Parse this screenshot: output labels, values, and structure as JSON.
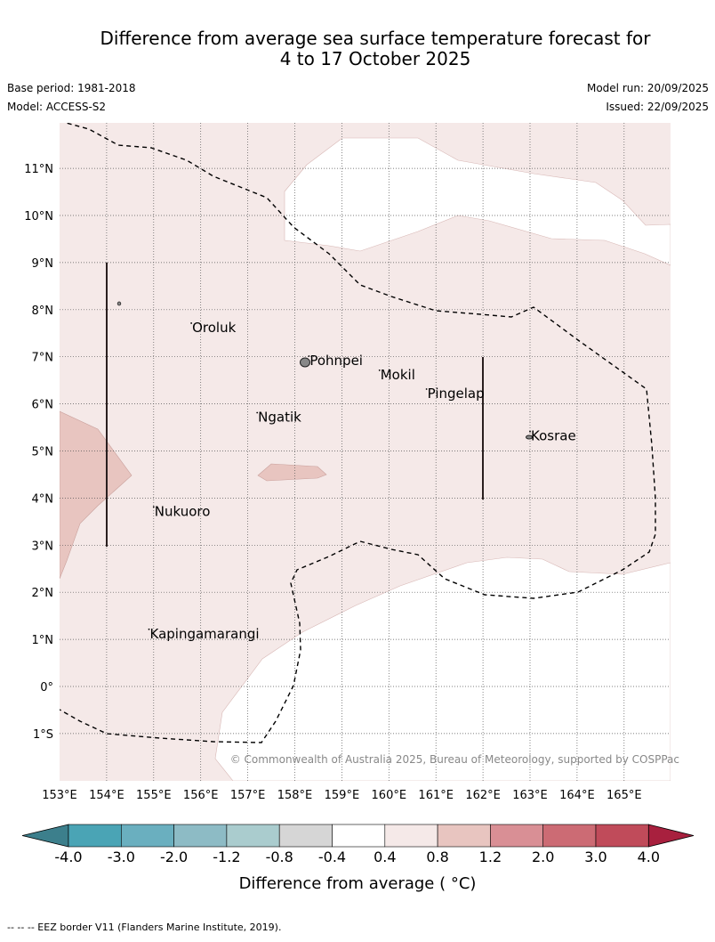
{
  "title": {
    "line1": "Difference from average sea surface temperature forecast for",
    "line2": "4 to 17 October 2025"
  },
  "meta": {
    "base_period": "Base period: 1981-2018",
    "model": "Model: ACCESS-S2",
    "model_run": "Model run: 20/09/2025",
    "issued": "Issued: 22/09/2025"
  },
  "map": {
    "lon_labels": [
      "153°E",
      "154°E",
      "155°E",
      "156°E",
      "157°E",
      "158°E",
      "159°E",
      "160°E",
      "161°E",
      "162°E",
      "163°E",
      "164°E",
      "165°E"
    ],
    "lat_labels": [
      "11°N",
      "10°N",
      "9°N",
      "8°N",
      "7°N",
      "6°N",
      "5°N",
      "4°N",
      "3°N",
      "2°N",
      "1°N",
      "0°",
      "1°S"
    ],
    "places": [
      {
        "name": "Oroluk",
        "lon": 155.8,
        "lat": 7.6
      },
      {
        "name": "Pohnpei",
        "lon": 158.3,
        "lat": 6.9
      },
      {
        "name": "Mokil",
        "lon": 159.8,
        "lat": 6.6
      },
      {
        "name": "Pingelap",
        "lon": 160.8,
        "lat": 6.2
      },
      {
        "name": "Ngatik",
        "lon": 157.2,
        "lat": 5.7
      },
      {
        "name": "Kosrae",
        "lon": 163.0,
        "lat": 5.3
      },
      {
        "name": "Nukuoro",
        "lon": 155.0,
        "lat": 3.7
      },
      {
        "name": "Kapingamarangi",
        "lon": 154.9,
        "lat": 1.1
      }
    ],
    "copyright": "© Commonwealth of Australia 2025, Bureau of Meteorology, supported by COSPPac"
  },
  "colorbar": {
    "ticks": [
      "-4.0",
      "-3.0",
      "-2.0",
      "-1.2",
      "-0.8",
      "-0.4",
      "0.4",
      "0.8",
      "1.2",
      "2.0",
      "3.0",
      "4.0"
    ],
    "colors": [
      "#3c7f8c",
      "#4aa4b5",
      "#6aafbf",
      "#8dbbc5",
      "#aaccce",
      "#d6d6d6",
      "#ffffff",
      "#f5e9e8",
      "#e8c5c0",
      "#d98f95",
      "#cc6b74",
      "#c04b5a",
      "#a8203e"
    ],
    "label": "Difference from average ( °C)"
  },
  "footnote": "-- -- -- EEZ border V11 (Flanders Marine Institute, 2019)."
}
